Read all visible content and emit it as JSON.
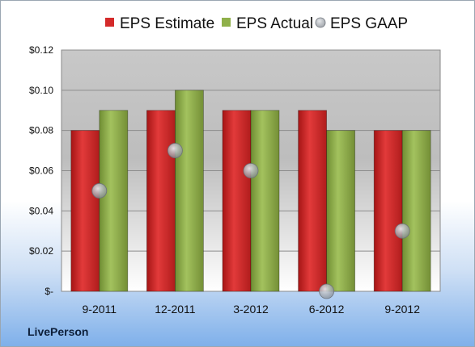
{
  "company": "LivePerson",
  "chart_data": {
    "type": "bar",
    "categories": [
      "9-2011",
      "12-2011",
      "3-2012",
      "6-2012",
      "9-2012"
    ],
    "series": [
      {
        "name": "EPS Estimate",
        "kind": "bar",
        "color": "#d42a2a",
        "values": [
          0.08,
          0.09,
          0.09,
          0.09,
          0.08
        ]
      },
      {
        "name": "EPS Actual",
        "kind": "bar",
        "color": "#8fb04a",
        "values": [
          0.09,
          0.1,
          0.09,
          0.08,
          0.08
        ]
      },
      {
        "name": "EPS GAAP",
        "kind": "marker",
        "color": "#a0a6ad",
        "values": [
          0.05,
          0.07,
          0.06,
          0.0,
          0.03
        ]
      }
    ],
    "ylim": [
      0,
      0.12
    ],
    "yticks": [
      0,
      0.02,
      0.04,
      0.06,
      0.08,
      0.1,
      0.12
    ],
    "ytick_labels": [
      "$-",
      "$0.02",
      "$0.04",
      "$0.06",
      "$0.08",
      "$0.10",
      "$0.12"
    ],
    "grid": true,
    "legend_position": "top-center"
  }
}
